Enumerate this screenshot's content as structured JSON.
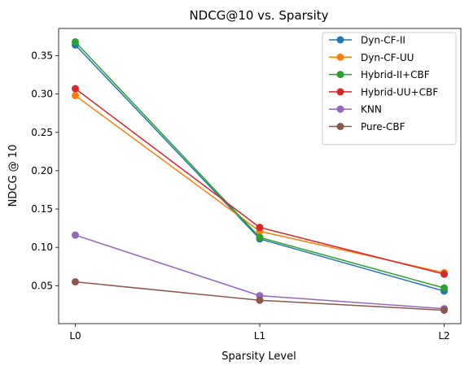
{
  "chart_data": {
    "type": "line",
    "title": "NDCG@10 vs. Sparsity",
    "xlabel": "Sparsity Level",
    "ylabel": "NDCG @ 10",
    "categories": [
      "L0",
      "L1",
      "L2"
    ],
    "ylim": [
      0.0005,
      0.3855
    ],
    "yticks": [
      0.05,
      0.1,
      0.15,
      0.2,
      0.25,
      0.3,
      0.35
    ],
    "ytick_labels": [
      "0.05",
      "0.10",
      "0.15",
      "0.20",
      "0.25",
      "0.30",
      "0.35"
    ],
    "grid": false,
    "legend_position": "top-right",
    "series": [
      {
        "name": "Dyn-CF-II",
        "color": "#1f77b4",
        "values": [
          0.364,
          0.111,
          0.043
        ]
      },
      {
        "name": "Dyn-CF-UU",
        "color": "#ff7f0e",
        "values": [
          0.298,
          0.121,
          0.067
        ]
      },
      {
        "name": "Hybrid-II+CBF",
        "color": "#2ca02c",
        "values": [
          0.368,
          0.113,
          0.047
        ]
      },
      {
        "name": "Hybrid-UU+CBF",
        "color": "#d62728",
        "values": [
          0.307,
          0.126,
          0.065
        ]
      },
      {
        "name": "KNN",
        "color": "#9467bd",
        "values": [
          0.116,
          0.037,
          0.02
        ]
      },
      {
        "name": "Pure-CBF",
        "color": "#8c564b",
        "values": [
          0.055,
          0.031,
          0.018
        ]
      }
    ]
  }
}
